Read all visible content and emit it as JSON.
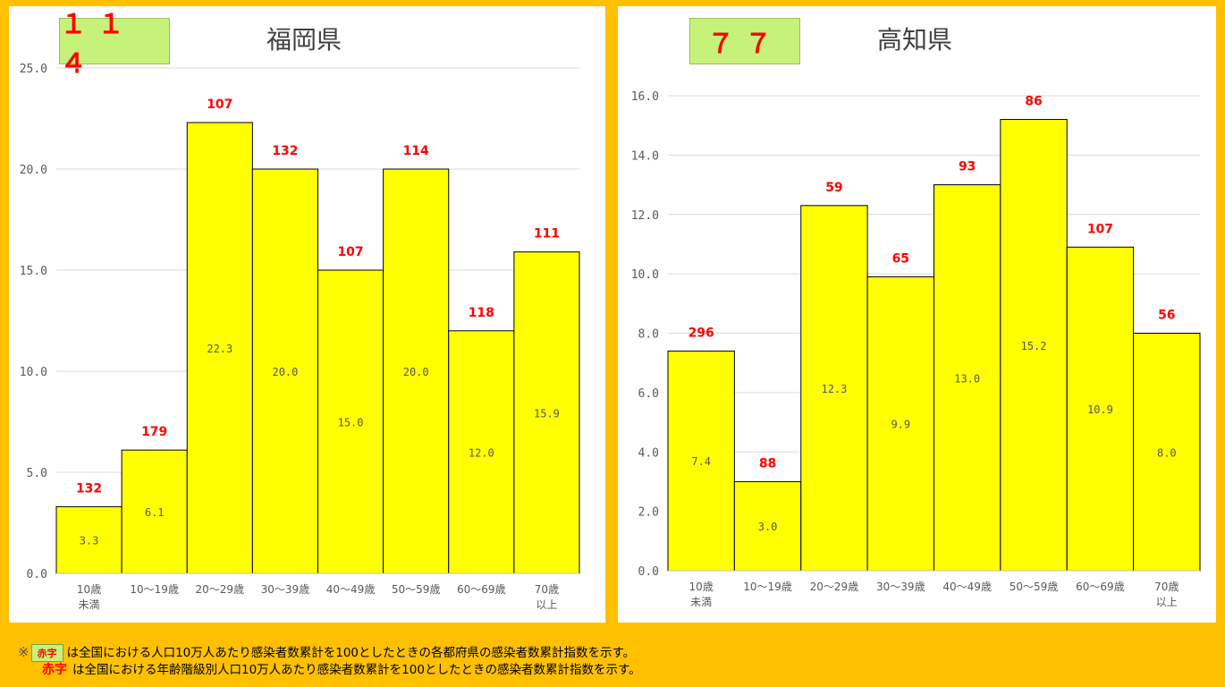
{
  "notes": {
    "mark": "※",
    "legend_box": "赤字",
    "line1": "は全国における人口10万人あたり感染者数累計を100としたときの各都府県の感染者数累計指数を示す。",
    "legend_red": "赤字",
    "line2": "は全国における年齢階級別人口10万人あたり感染者数累計を100としたときの感染者数累計指数を示す。"
  },
  "colors": {
    "background": "#FFC000",
    "bar": "#FFFF00",
    "index_box": "#C6F27A",
    "index_text": "#FF0000"
  },
  "chart_data": [
    {
      "type": "bar",
      "title": "福岡県",
      "prefecture_index": "１１４",
      "categories": [
        [
          "10歳",
          "未満"
        ],
        [
          "10～19歳"
        ],
        [
          "20～29歳"
        ],
        [
          "30～39歳"
        ],
        [
          "40～49歳"
        ],
        [
          "50～59歳"
        ],
        [
          "60～69歳"
        ],
        [
          "70歳",
          "以上"
        ]
      ],
      "values": [
        3.3,
        6.1,
        22.3,
        20.0,
        15.0,
        20.0,
        12.0,
        15.9
      ],
      "value_labels": [
        "3.3",
        "6.1",
        "22.3",
        "20.0",
        "15.0",
        "20.0",
        "12.0",
        "15.9"
      ],
      "index_labels": [
        "132",
        "179",
        "107",
        "132",
        "107",
        "114",
        "118",
        "111"
      ],
      "yticks": [
        "0.0",
        "5.0",
        "10.0",
        "15.0",
        "20.0",
        "25.0"
      ],
      "ylim": [
        0,
        25
      ]
    },
    {
      "type": "bar",
      "title": "高知県",
      "prefecture_index": "７７",
      "categories": [
        [
          "10歳",
          "未満"
        ],
        [
          "10～19歳"
        ],
        [
          "20～29歳"
        ],
        [
          "30～39歳"
        ],
        [
          "40～49歳"
        ],
        [
          "50～59歳"
        ],
        [
          "60～69歳"
        ],
        [
          "70歳",
          "以上"
        ]
      ],
      "values": [
        7.4,
        3.0,
        12.3,
        9.9,
        13.0,
        15.2,
        10.9,
        8.0
      ],
      "value_labels": [
        "7.4",
        "3.0",
        "12.3",
        "9.9",
        "13.0",
        "15.2",
        "10.9",
        "8.0"
      ],
      "index_labels": [
        "296",
        "88",
        "59",
        "65",
        "93",
        "86",
        "107",
        "56"
      ],
      "yticks": [
        "0.0",
        "2.0",
        "4.0",
        "6.0",
        "8.0",
        "10.0",
        "12.0",
        "14.0",
        "16.0"
      ],
      "ylim": [
        0,
        16
      ]
    }
  ]
}
